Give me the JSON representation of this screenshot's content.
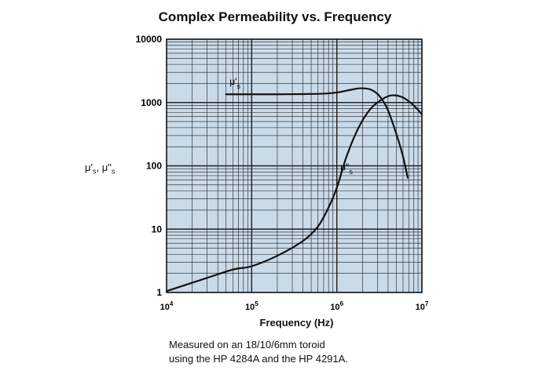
{
  "chart_data": {
    "type": "line",
    "title": "Complex Permeability vs. Frequency",
    "xlabel": "Frequency (Hz)",
    "ylabel": "μ's, μ\"s",
    "xscale": "log",
    "yscale": "log",
    "xlim": [
      10000,
      10000000
    ],
    "ylim": [
      1,
      10000
    ],
    "grid": true,
    "x_ticks": [
      {
        "value": 10000,
        "base": "10",
        "exp": "4"
      },
      {
        "value": 100000,
        "base": "10",
        "exp": "5"
      },
      {
        "value": 1000000,
        "base": "10",
        "exp": "6"
      },
      {
        "value": 10000000,
        "base": "10",
        "exp": "7"
      }
    ],
    "y_ticks": [
      {
        "value": 1,
        "label": "1"
      },
      {
        "value": 10,
        "label": "10"
      },
      {
        "value": 100,
        "label": "100"
      },
      {
        "value": 1000,
        "label": "1000"
      },
      {
        "value": 10000,
        "label": "10000"
      }
    ],
    "series": [
      {
        "name": "μ's",
        "label_main": "μ'",
        "label_sub": "s",
        "x": [
          50000,
          100000,
          200000,
          400000,
          700000,
          1000000,
          1500000,
          1900000,
          2500000,
          3200000,
          4000000,
          5000000,
          6000000,
          6800000
        ],
        "y": [
          1350,
          1350,
          1350,
          1360,
          1380,
          1440,
          1600,
          1680,
          1600,
          1250,
          750,
          320,
          140,
          65
        ]
      },
      {
        "name": "μ\"s",
        "label_main": "μ\"",
        "label_sub": "s",
        "x": [
          10000,
          30000,
          60000,
          100000,
          200000,
          400000,
          600000,
          800000,
          1000000,
          1300000,
          1800000,
          2500000,
          3500000,
          4500000,
          6000000,
          8000000,
          10000000
        ],
        "y": [
          1.05,
          1.7,
          2.3,
          2.6,
          3.8,
          6.5,
          11,
          22,
          45,
          140,
          400,
          800,
          1150,
          1300,
          1200,
          900,
          650
        ]
      }
    ]
  },
  "caption": {
    "line1": "Measured on an 18/10/6mm toroid",
    "line2": "using the HP 4284A and the HP 4291A."
  }
}
